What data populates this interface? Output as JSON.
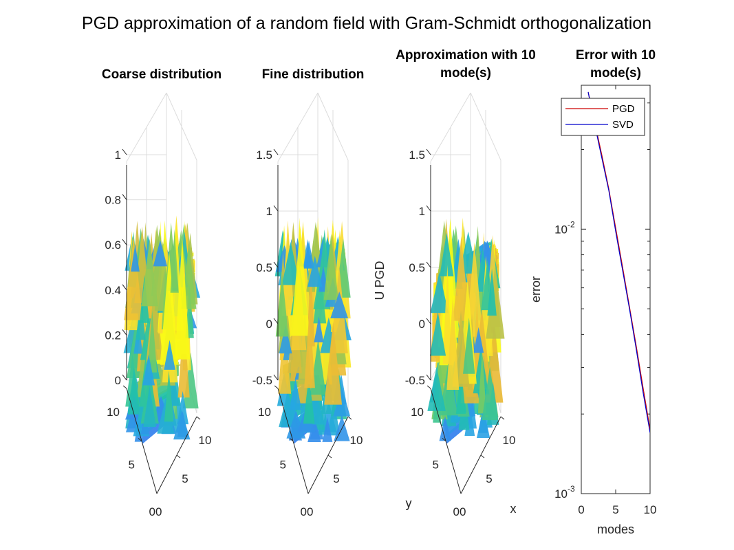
{
  "figure_title": "PGD approximation of a random field with Gram-Schmidt orthogonalization",
  "colormap": [
    "#3e26a8",
    "#4470f6",
    "#26a8e1",
    "#21c2a8",
    "#7ccd5e",
    "#e9b935",
    "#fadb33",
    "#f9fb15"
  ],
  "chart_data": [
    {
      "type": "surface",
      "title": "Coarse distribution",
      "x_ticks": [
        "5",
        "10"
      ],
      "y_ticks": [
        "5",
        "10"
      ],
      "corner_label": "00",
      "zlim": [
        0,
        1
      ],
      "z_ticks": [
        "0",
        "0.2",
        "0.4",
        "0.6",
        "0.8",
        "1"
      ],
      "xlabel": "",
      "ylabel": "",
      "zlabel": ""
    },
    {
      "type": "surface",
      "title": "Fine distribution",
      "x_ticks": [
        "5",
        "10"
      ],
      "y_ticks": [
        "5",
        "10"
      ],
      "corner_label": "00",
      "zlim": [
        -0.5,
        1.5
      ],
      "z_ticks": [
        "-0.5",
        "0",
        "0.5",
        "1",
        "1.5"
      ],
      "xlabel": "",
      "ylabel": "",
      "zlabel": ""
    },
    {
      "type": "surface",
      "title": "Approximation with 10 mode(s)",
      "title_lines": [
        "Approximation with 10",
        "mode(s)"
      ],
      "x_ticks": [
        "5",
        "10"
      ],
      "y_ticks": [
        "5",
        "10"
      ],
      "corner_label": "00",
      "zlim": [
        -0.5,
        1.5
      ],
      "z_ticks": [
        "-0.5",
        "0",
        "0.5",
        "1",
        "1.5"
      ],
      "xlabel": "x",
      "ylabel": "y",
      "zlabel": "U PGD"
    },
    {
      "type": "line",
      "title": "Error with 10 mode(s)",
      "title_lines": [
        "Error with 10",
        "mode(s)"
      ],
      "xlabel": "modes",
      "ylabel": "error",
      "xlim": [
        0,
        10
      ],
      "ylim": [
        0.001,
        0.035
      ],
      "yscale": "log",
      "x_ticks": [
        "0",
        "5",
        "10"
      ],
      "y_ticks": [
        {
          "base": "10",
          "exp": "-3"
        },
        {
          "base": "10",
          "exp": "-2"
        }
      ],
      "legend_position": "top",
      "series": [
        {
          "name": "PGD",
          "color": "#cc0000",
          "x": [
            1,
            2,
            3,
            4,
            5,
            6,
            7,
            8,
            9,
            10
          ],
          "y": [
            0.033,
            0.025,
            0.019,
            0.0142,
            0.0101,
            0.0072,
            0.0051,
            0.0036,
            0.0025,
            0.00175
          ]
        },
        {
          "name": "SVD",
          "color": "#0000cc",
          "x": [
            1,
            2,
            3,
            4,
            5,
            6,
            7,
            8,
            9,
            10
          ],
          "y": [
            0.033,
            0.0245,
            0.0185,
            0.014,
            0.0098,
            0.007,
            0.005,
            0.0035,
            0.0024,
            0.0017
          ]
        }
      ]
    }
  ]
}
